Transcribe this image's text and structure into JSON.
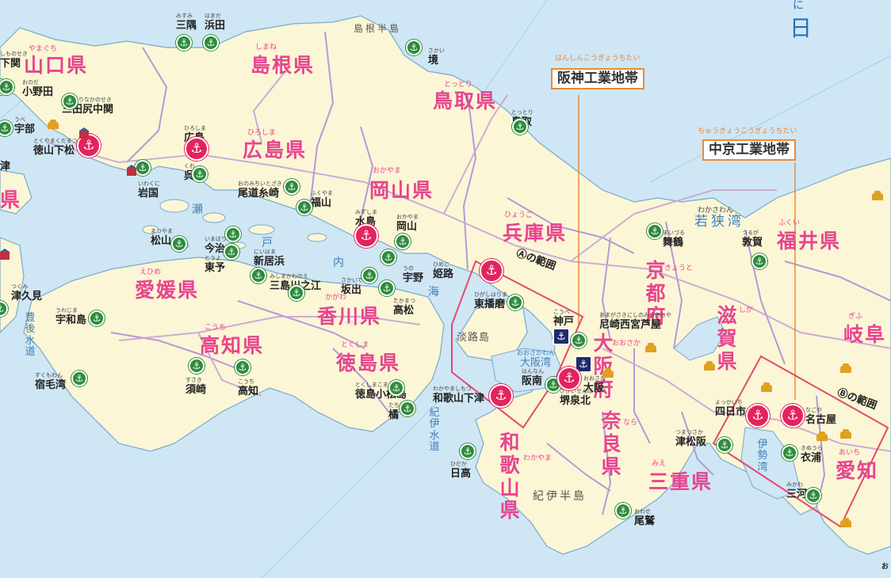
{
  "map": {
    "sea_color": "#cfe6f5",
    "land_color": "#fbf6d6",
    "border_color": "#b49ad6",
    "highway_color": "#c9a4d4",
    "accent_pink": "#e8458f",
    "belt_color": "#e98a3a",
    "big_port_color": "#e3245e",
    "small_port_color": "#2e8b3d",
    "trade_port_color": "#1e2a6b"
  },
  "corner": {
    "nihon_kai_glyph_1": "に",
    "nihon_kai_glyph_2": "日"
  },
  "prefectures": {
    "yamaguchi": "山口県",
    "yamaguchi_ruby": "やまぐち",
    "shimane": "島根県",
    "shimane_ruby": "しまね",
    "tottori": "鳥取県",
    "tottori_ruby": "とっとり",
    "hiroshima": "広島県",
    "hiroshima_ruby": "ひろしま",
    "okayama": "岡山県",
    "okayama_ruby": "おかやま",
    "hyogo": "兵庫県",
    "hyogo_ruby": "ひょうご",
    "kyoto": "京都府",
    "kyoto_ruby": "きょうと",
    "fukui": "福井県",
    "fukui_ruby": "ふくい",
    "shiga": "滋賀県",
    "shiga_ruby": "しが",
    "gifu": "岐阜",
    "gifu_ruby": "ぎふ",
    "osaka": "大阪府",
    "osaka_ruby": "おおさか",
    "nara": "奈良県",
    "nara_ruby": "なら",
    "mie": "三重県",
    "mie_ruby": "みえ",
    "aichi": "愛知",
    "aichi_ruby": "あいち",
    "wakayama": "和歌山県",
    "wakayama_ruby": "わかやま",
    "ehime": "愛媛県",
    "ehime_ruby": "えひめ",
    "kagawa": "香川県",
    "kagawa_ruby": "かがわ",
    "kochi": "高知県",
    "kochi_ruby": "こうち",
    "tokushima": "徳島県",
    "tokushima_ruby": "とくしま",
    "ken_fragment": "県"
  },
  "belts": {
    "hanshin": "阪神工業地帯",
    "hanshin_ruby": "はんしんこうぎょうちたい",
    "chukyo": "中京工業地帯",
    "chukyo_ruby": "ちゅうきょうこうぎょうちたい"
  },
  "areas": {
    "a": "Ⓐの範囲",
    "b": "Ⓑの範囲"
  },
  "geography": {
    "shimane_hanto": "島根半島",
    "kii_hanto": "紀伊半島",
    "awajishima": "淡路島",
    "wakasa_wan": "若狭湾",
    "wakasa_wan_ruby": "わかさわん",
    "osaka_wan": "大阪湾",
    "osaka_wan_ruby": "おおさかわん",
    "ise_wan": "伊勢湾",
    "setonaikai_1": "瀬",
    "setonaikai_2": "戸",
    "setonaikai_3": "内",
    "setonaikai_4": "海",
    "bungo_suido": "豊後水道",
    "kii_suido": "紀伊水道"
  },
  "cities": [
    {
      "name": "三隅",
      "ruby": "みすみ"
    },
    {
      "name": "浜田",
      "ruby": "はまだ"
    },
    {
      "name": "境",
      "ruby": "さかい"
    },
    {
      "name": "鳥取",
      "ruby": "とっとり"
    },
    {
      "name": "下関",
      "ruby": "しものせき"
    },
    {
      "name": "小野田",
      "ruby": "おのだ"
    },
    {
      "name": "三田尻中関",
      "ruby": "みたじりなかのせき"
    },
    {
      "name": "宇部",
      "ruby": "うべ"
    },
    {
      "name": "徳山下松",
      "ruby": "とくやまくだまつ"
    },
    {
      "name": "広島",
      "ruby": "ひろしま"
    },
    {
      "name": "岩国",
      "ruby": "いわくに"
    },
    {
      "name": "呉",
      "ruby": "くれ"
    },
    {
      "name": "尾道糸崎",
      "ruby": "おのみちいとざき"
    },
    {
      "name": "福山",
      "ruby": "ふくやま"
    },
    {
      "name": "水島",
      "ruby": "みずしま"
    },
    {
      "name": "岡山",
      "ruby": "おかやま"
    },
    {
      "name": "宇野",
      "ruby": "うの"
    },
    {
      "name": "高松",
      "ruby": "たかまつ"
    },
    {
      "name": "坂出",
      "ruby": "さかいで"
    },
    {
      "name": "三島川之江",
      "ruby": "みしまかわのえ"
    },
    {
      "name": "新居浜",
      "ruby": "にいはま"
    },
    {
      "name": "今治",
      "ruby": "いまばり"
    },
    {
      "name": "東予",
      "ruby": "とうよ"
    },
    {
      "name": "松山",
      "ruby": "まつやま"
    },
    {
      "name": "津久見",
      "ruby": "つくみ"
    },
    {
      "name": "宇和島",
      "ruby": "うわじま"
    },
    {
      "name": "宿毛湾",
      "ruby": "すくもわん"
    },
    {
      "name": "須崎",
      "ruby": "すさき"
    },
    {
      "name": "高知",
      "ruby": "こうち"
    },
    {
      "name": "徳島小松島",
      "ruby": "とくしまこまつしま"
    },
    {
      "name": "橘",
      "ruby": "たちばな"
    },
    {
      "name": "和歌山下津",
      "ruby": "わかやましもつ"
    },
    {
      "name": "日高",
      "ruby": "ひだか"
    },
    {
      "name": "姫路",
      "ruby": "ひめじ"
    },
    {
      "name": "東播磨",
      "ruby": "ひがしはりま"
    },
    {
      "name": "神戸",
      "ruby": "こうべ"
    },
    {
      "name": "尼崎西宮芦屋",
      "ruby": "あまがさきにしのみやあしや"
    },
    {
      "name": "阪南",
      "ruby": "はんなん"
    },
    {
      "name": "大阪",
      "ruby": "おおさか"
    },
    {
      "name": "堺泉北",
      "ruby": "さかいせんぼく"
    },
    {
      "name": "舞鶴",
      "ruby": "まいづる"
    },
    {
      "name": "敦賀",
      "ruby": "つるが"
    },
    {
      "name": "四日市",
      "ruby": "よっかいち"
    },
    {
      "name": "名古屋",
      "ruby": "なごや"
    },
    {
      "name": "津松阪",
      "ruby": "つまつさか"
    },
    {
      "name": "衣浦",
      "ruby": "きぬうら"
    },
    {
      "name": "三河",
      "ruby": "みかわ"
    },
    {
      "name": "尾鷲",
      "ruby": "おわせ"
    }
  ],
  "fragments": {
    "left_tsu": "津",
    "left_ken": "県",
    "right_edge": "お"
  }
}
